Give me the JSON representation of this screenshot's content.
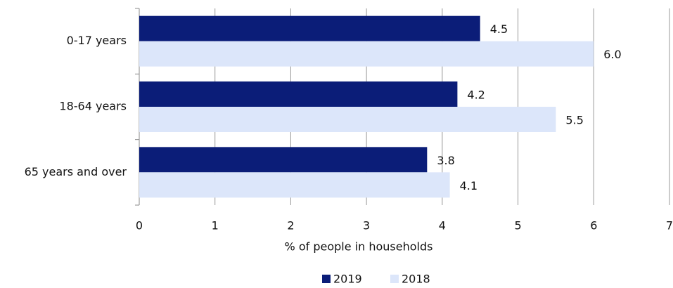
{
  "chart_data": {
    "type": "hbar",
    "x_label": "% of people in households",
    "categories": [
      "0-17 years",
      "18-64 years",
      "65 years and over"
    ],
    "series": [
      {
        "name": "2019",
        "color": "#0b1d78",
        "values": [
          4.5,
          4.2,
          3.8
        ]
      },
      {
        "name": "2018",
        "color": "#dce6fa",
        "values": [
          6.0,
          5.5,
          4.1
        ],
        "value_labels": [
          "6.0",
          "5.5",
          "4.1"
        ]
      }
    ],
    "xlim": [
      0,
      7
    ],
    "xticks": [
      0,
      1,
      2,
      3,
      4,
      5,
      6,
      7
    ],
    "grid": true,
    "legend": "bottom"
  }
}
